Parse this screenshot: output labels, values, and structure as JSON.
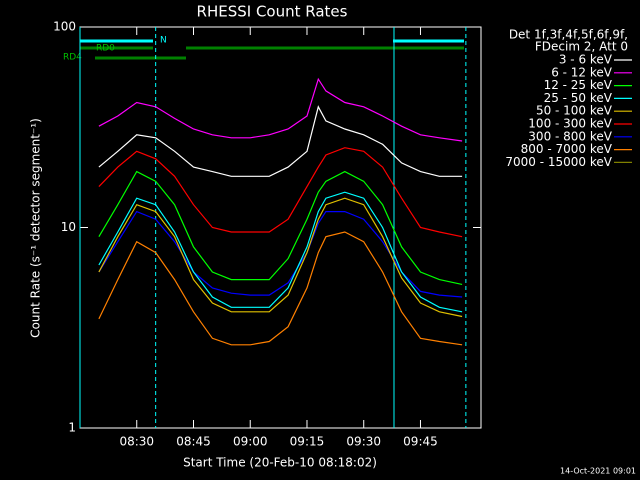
{
  "chart_data": {
    "type": "line",
    "title": "RHESSI Count Rates",
    "x_label": "Start Time (20-Feb-10 08:18:02)",
    "y_label": "Count Rate (s⁻¹ detector segment⁻¹)",
    "legend_title": [
      "Det 1f,3f,4f,5f,6f,9f,",
      "FDecim 2, Att 0"
    ],
    "footer": "14-Oct-2021 09:01",
    "yscale": "log",
    "ylim": [
      1,
      100
    ],
    "yticks": [
      1,
      10,
      100
    ],
    "xlim": [
      "08:15",
      "10:01"
    ],
    "xticks": [
      "08:30",
      "08:45",
      "09:00",
      "09:15",
      "09:30",
      "09:45"
    ],
    "vlines": [
      {
        "x": "08:15",
        "style": "solid"
      },
      {
        "x": "08:35",
        "style": "dashed"
      },
      {
        "x": "09:38",
        "style": "solid"
      },
      {
        "x": "09:57",
        "style": "dashed"
      }
    ],
    "flags": [
      "N",
      "RD0",
      "RD4"
    ],
    "x": [
      "08:20",
      "08:25",
      "08:30",
      "08:35",
      "08:40",
      "08:45",
      "08:50",
      "08:55",
      "09:00",
      "09:05",
      "09:10",
      "09:15",
      "09:18",
      "09:20",
      "09:25",
      "09:30",
      "09:35",
      "09:40",
      "09:45",
      "09:50",
      "09:56"
    ],
    "series": [
      {
        "name": "3 - 6 keV",
        "color": "#000000",
        "line_color": "#ffffff",
        "values": [
          20,
          24,
          29,
          28,
          24,
          20,
          19,
          18,
          18,
          18,
          20,
          24,
          40,
          34,
          31,
          29,
          26,
          21,
          19,
          18,
          18
        ]
      },
      {
        "name": "6 - 12 keV",
        "color": "#ff00ff",
        "values": [
          32,
          36,
          42,
          40,
          35,
          31,
          29,
          28,
          28,
          29,
          31,
          36,
          55,
          48,
          42,
          40,
          36,
          32,
          29,
          28,
          27
        ]
      },
      {
        "name": "12 - 25 keV",
        "color": "#00ff00",
        "values": [
          9,
          13,
          19,
          17,
          13,
          8,
          6,
          5.5,
          5.5,
          5.5,
          7,
          11,
          15,
          17,
          19,
          17,
          13,
          8,
          6,
          5.5,
          5.2
        ]
      },
      {
        "name": "25 - 50 keV",
        "color": "#00ffff",
        "values": [
          6.5,
          9.5,
          14,
          13,
          9.5,
          6,
          4.5,
          4,
          4,
          4,
          5,
          8,
          12,
          14,
          15,
          14,
          10,
          6,
          4.5,
          4,
          3.8
        ]
      },
      {
        "name": "50 - 100 keV",
        "color": "#e0c000",
        "values": [
          6,
          9,
          13,
          12,
          9,
          5.5,
          4.2,
          3.8,
          3.8,
          3.8,
          4.6,
          7.5,
          11,
          13,
          14,
          13,
          9,
          5.6,
          4.2,
          3.8,
          3.6
        ]
      },
      {
        "name": "100 - 300 keV",
        "color": "#ff0000",
        "values": [
          16,
          20,
          24,
          22,
          18,
          13,
          10,
          9.5,
          9.5,
          9.5,
          11,
          16,
          20,
          23,
          25,
          24,
          20,
          14,
          10,
          9.5,
          9
        ]
      },
      {
        "name": "300 - 800 keV",
        "color": "#0000ff",
        "values": [
          6,
          8.5,
          12,
          11,
          8.5,
          6,
          5,
          4.7,
          4.6,
          4.6,
          5.3,
          7.5,
          10.5,
          12,
          12,
          11,
          8.5,
          6,
          4.8,
          4.6,
          4.5
        ]
      },
      {
        "name": "800 - 7000 keV",
        "color": "#ff8000",
        "values": [
          3.5,
          5.5,
          8.5,
          7.5,
          5.5,
          3.8,
          2.8,
          2.6,
          2.6,
          2.7,
          3.2,
          5,
          7.5,
          9,
          9.5,
          8.5,
          6,
          3.8,
          2.8,
          2.7,
          2.6
        ]
      },
      {
        "name": "7000 - 15000 keV",
        "color": "#808000",
        "values": [
          null,
          null,
          null,
          null,
          null,
          null,
          null,
          null,
          null,
          null,
          null,
          null,
          null,
          null,
          null,
          null,
          null,
          null,
          null,
          null,
          null
        ]
      }
    ]
  }
}
